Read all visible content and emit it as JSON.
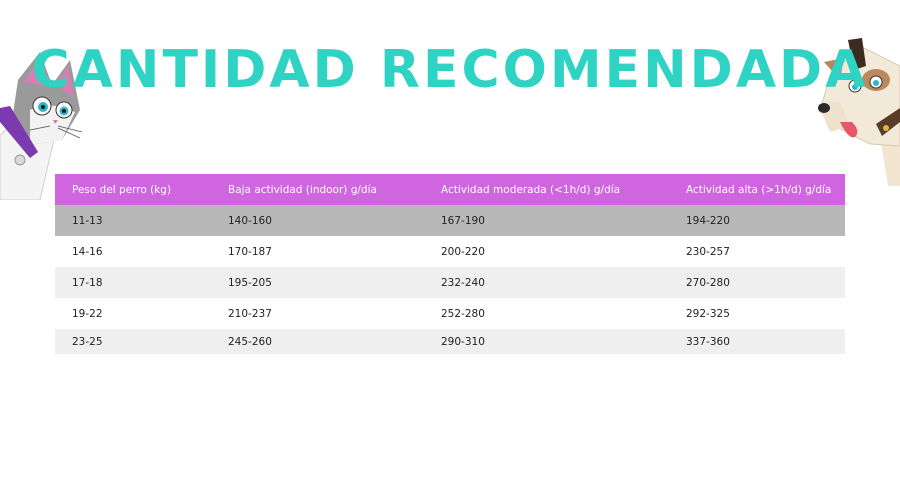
{
  "title": "CANTIDAD RECOMENDADA",
  "colors": {
    "title": "#2ed3c4",
    "header_bg": "#cf66e0",
    "row_highlight": "#b8b8b8",
    "row_alt": "#efefef"
  },
  "illustrations": {
    "left": "cat-illustration",
    "right": "dog-illustration"
  },
  "table": {
    "headers": [
      "Peso del perro (kg)",
      "Baja actividad (indoor) g/día",
      "Actividad moderada (<1h/d) g/día",
      "Actividad alta (>1h/d) g/día"
    ],
    "rows": [
      [
        "11-13",
        "140-160",
        "167-190",
        "194-220"
      ],
      [
        "14-16",
        "170-187",
        "200-220",
        "230-257"
      ],
      [
        "17-18",
        "195-205",
        "232-240",
        "270-280"
      ],
      [
        "19-22",
        "210-237",
        "252-280",
        "292-325"
      ],
      [
        "23-25",
        "245-260",
        "290-310",
        "337-360"
      ]
    ]
  }
}
